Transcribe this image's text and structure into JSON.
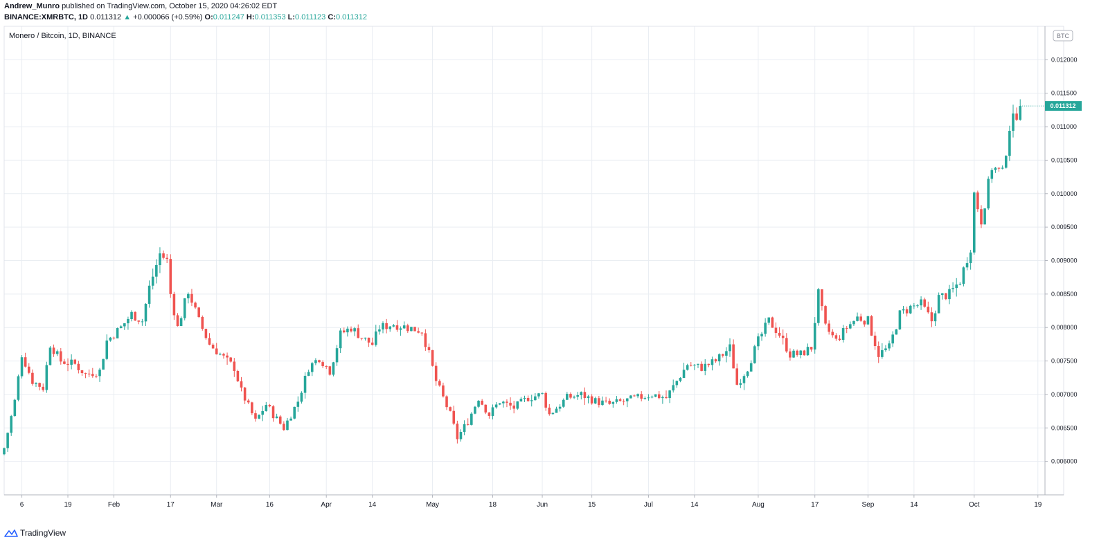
{
  "header": {
    "author": "Andrew_Munro",
    "published_text": "published on TradingView.com, October 15, 2020 04:26:02 EDT",
    "symbol_interval": "BINANCE:XMRBTC, 1D",
    "last_price": "0.011312",
    "change": "+0.000066 (+0.59%)",
    "open_label": "O:",
    "open": "0.011247",
    "high_label": "H:",
    "high": "0.011353",
    "low_label": "L:",
    "low": "0.011123",
    "close_label": "C:",
    "close": "0.011312"
  },
  "chart": {
    "legend_title": "Monero / Bitcoin, 1D, BINANCE",
    "currency_badge": "BTC",
    "price_tag": "0.011312"
  },
  "footer": {
    "brand": "TradingView"
  },
  "colors": {
    "up": "#26a69a",
    "down": "#ef5350",
    "grid": "#e9edf2",
    "axis_text": "#131722"
  },
  "chart_data": {
    "type": "candlestick",
    "title": "Monero / Bitcoin, 1D, BINANCE",
    "ylim": [
      0.0055,
      0.0125
    ],
    "x_start_date": "2020-01-01",
    "x_end_date": "2020-10-21",
    "y_ticks": [
      "0.006000",
      "0.006500",
      "0.007000",
      "0.007500",
      "0.008000",
      "0.008500",
      "0.009000",
      "0.009500",
      "0.010000",
      "0.010500",
      "0.011000",
      "0.011500",
      "0.012000"
    ],
    "x_ticks": [
      {
        "label": "6",
        "date": "2020-01-06"
      },
      {
        "label": "19",
        "date": "2020-01-19"
      },
      {
        "label": "Feb",
        "date": "2020-02-01"
      },
      {
        "label": "17",
        "date": "2020-02-17"
      },
      {
        "label": "Mar",
        "date": "2020-03-01"
      },
      {
        "label": "16",
        "date": "2020-03-16"
      },
      {
        "label": "Apr",
        "date": "2020-04-01"
      },
      {
        "label": "14",
        "date": "2020-04-14"
      },
      {
        "label": "May",
        "date": "2020-05-01"
      },
      {
        "label": "18",
        "date": "2020-05-18"
      },
      {
        "label": "Jun",
        "date": "2020-06-01"
      },
      {
        "label": "15",
        "date": "2020-06-15"
      },
      {
        "label": "Jul",
        "date": "2020-07-01"
      },
      {
        "label": "14",
        "date": "2020-07-14"
      },
      {
        "label": "Aug",
        "date": "2020-08-01"
      },
      {
        "label": "17",
        "date": "2020-08-17"
      },
      {
        "label": "Sep",
        "date": "2020-09-01"
      },
      {
        "label": "14",
        "date": "2020-09-14"
      },
      {
        "label": "Oct",
        "date": "2020-10-01"
      },
      {
        "label": "19",
        "date": "2020-10-19"
      }
    ],
    "close_path": [
      {
        "date": "2020-01-01",
        "close": 0.0062
      },
      {
        "date": "2020-01-04",
        "close": 0.0069
      },
      {
        "date": "2020-01-06",
        "close": 0.0076
      },
      {
        "date": "2020-01-09",
        "close": 0.0072
      },
      {
        "date": "2020-01-12",
        "close": 0.0071
      },
      {
        "date": "2020-01-14",
        "close": 0.00775
      },
      {
        "date": "2020-01-17",
        "close": 0.0075
      },
      {
        "date": "2020-01-21",
        "close": 0.00745
      },
      {
        "date": "2020-01-24",
        "close": 0.0073
      },
      {
        "date": "2020-01-28",
        "close": 0.00735
      },
      {
        "date": "2020-01-30",
        "close": 0.0078
      },
      {
        "date": "2020-02-03",
        "close": 0.008
      },
      {
        "date": "2020-02-06",
        "close": 0.0082
      },
      {
        "date": "2020-02-09",
        "close": 0.0081
      },
      {
        "date": "2020-02-11",
        "close": 0.0086
      },
      {
        "date": "2020-02-14",
        "close": 0.0091
      },
      {
        "date": "2020-02-16",
        "close": 0.009
      },
      {
        "date": "2020-02-17",
        "close": 0.0085
      },
      {
        "date": "2020-02-19",
        "close": 0.008
      },
      {
        "date": "2020-02-22",
        "close": 0.00855
      },
      {
        "date": "2020-02-25",
        "close": 0.0081
      },
      {
        "date": "2020-02-28",
        "close": 0.00775
      },
      {
        "date": "2020-03-03",
        "close": 0.00755
      },
      {
        "date": "2020-03-06",
        "close": 0.0074
      },
      {
        "date": "2020-03-08",
        "close": 0.00705
      },
      {
        "date": "2020-03-12",
        "close": 0.0066
      },
      {
        "date": "2020-03-15",
        "close": 0.00685
      },
      {
        "date": "2020-03-17",
        "close": 0.0067
      },
      {
        "date": "2020-03-20",
        "close": 0.0065
      },
      {
        "date": "2020-03-24",
        "close": 0.0069
      },
      {
        "date": "2020-03-27",
        "close": 0.0074
      },
      {
        "date": "2020-03-30",
        "close": 0.00755
      },
      {
        "date": "2020-04-02",
        "close": 0.00735
      },
      {
        "date": "2020-04-05",
        "close": 0.0079
      },
      {
        "date": "2020-04-08",
        "close": 0.008
      },
      {
        "date": "2020-04-11",
        "close": 0.00785
      },
      {
        "date": "2020-04-14",
        "close": 0.00775
      },
      {
        "date": "2020-04-16",
        "close": 0.008
      },
      {
        "date": "2020-04-20",
        "close": 0.00805
      },
      {
        "date": "2020-04-24",
        "close": 0.008
      },
      {
        "date": "2020-04-28",
        "close": 0.00795
      },
      {
        "date": "2020-04-30",
        "close": 0.0076
      },
      {
        "date": "2020-05-02",
        "close": 0.0072
      },
      {
        "date": "2020-05-06",
        "close": 0.0067
      },
      {
        "date": "2020-05-08",
        "close": 0.00635
      },
      {
        "date": "2020-05-11",
        "close": 0.0066
      },
      {
        "date": "2020-05-14",
        "close": 0.00695
      },
      {
        "date": "2020-05-17",
        "close": 0.0067
      },
      {
        "date": "2020-05-20",
        "close": 0.0069
      },
      {
        "date": "2020-05-24",
        "close": 0.0068
      },
      {
        "date": "2020-05-28",
        "close": 0.00695
      },
      {
        "date": "2020-06-01",
        "close": 0.007
      },
      {
        "date": "2020-06-03",
        "close": 0.0067
      },
      {
        "date": "2020-06-08",
        "close": 0.00695
      },
      {
        "date": "2020-06-12",
        "close": 0.007
      },
      {
        "date": "2020-06-16",
        "close": 0.0069
      },
      {
        "date": "2020-06-20",
        "close": 0.00685
      },
      {
        "date": "2020-06-24",
        "close": 0.0069
      },
      {
        "date": "2020-06-28",
        "close": 0.00695
      },
      {
        "date": "2020-07-02",
        "close": 0.007
      },
      {
        "date": "2020-07-06",
        "close": 0.00695
      },
      {
        "date": "2020-07-09",
        "close": 0.0072
      },
      {
        "date": "2020-07-12",
        "close": 0.00745
      },
      {
        "date": "2020-07-16",
        "close": 0.0074
      },
      {
        "date": "2020-07-20",
        "close": 0.0075
      },
      {
        "date": "2020-07-24",
        "close": 0.0077
      },
      {
        "date": "2020-07-26",
        "close": 0.00715
      },
      {
        "date": "2020-07-29",
        "close": 0.0074
      },
      {
        "date": "2020-08-01",
        "close": 0.0078
      },
      {
        "date": "2020-08-04",
        "close": 0.0081
      },
      {
        "date": "2020-08-07",
        "close": 0.0079
      },
      {
        "date": "2020-08-10",
        "close": 0.0076
      },
      {
        "date": "2020-08-13",
        "close": 0.0076
      },
      {
        "date": "2020-08-16",
        "close": 0.0077
      },
      {
        "date": "2020-08-18",
        "close": 0.0085
      },
      {
        "date": "2020-08-20",
        "close": 0.008
      },
      {
        "date": "2020-08-23",
        "close": 0.0078
      },
      {
        "date": "2020-08-26",
        "close": 0.008
      },
      {
        "date": "2020-08-29",
        "close": 0.00815
      },
      {
        "date": "2020-09-01",
        "close": 0.0081
      },
      {
        "date": "2020-09-04",
        "close": 0.0076
      },
      {
        "date": "2020-09-07",
        "close": 0.0077
      },
      {
        "date": "2020-09-10",
        "close": 0.0082
      },
      {
        "date": "2020-09-13",
        "close": 0.0083
      },
      {
        "date": "2020-09-16",
        "close": 0.00835
      },
      {
        "date": "2020-09-19",
        "close": 0.0081
      },
      {
        "date": "2020-09-21",
        "close": 0.00845
      },
      {
        "date": "2020-09-24",
        "close": 0.0085
      },
      {
        "date": "2020-09-27",
        "close": 0.0087
      },
      {
        "date": "2020-09-30",
        "close": 0.0092
      },
      {
        "date": "2020-10-01",
        "close": 0.01
      },
      {
        "date": "2020-10-03",
        "close": 0.0096
      },
      {
        "date": "2020-10-06",
        "close": 0.0104
      },
      {
        "date": "2020-10-09",
        "close": 0.0103
      },
      {
        "date": "2020-10-11",
        "close": 0.011
      },
      {
        "date": "2020-10-13",
        "close": 0.0112
      },
      {
        "date": "2020-10-14",
        "close": 0.01131
      }
    ]
  }
}
